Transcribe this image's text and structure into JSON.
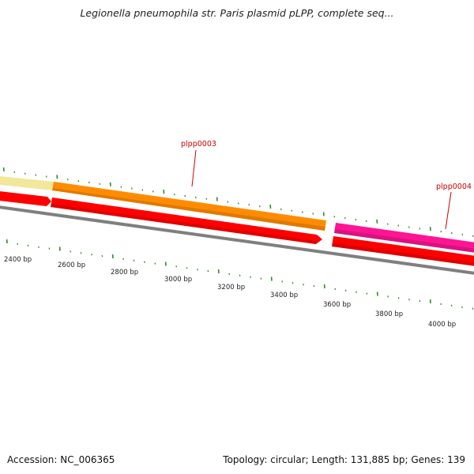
{
  "title": "Legionella pneumophila str. Paris plasmid pLPP, complete seq...",
  "footer": {
    "accession": "Accession: NC_006365",
    "summary": "Topology: circular; Length: 131,885 bp; Genes: 139"
  },
  "colors": {
    "backbone": "#7f7f7f",
    "tick": "#2e8b2e",
    "gene_label": "#cc0000",
    "cds": "#ff0000",
    "pale_gene": "#f2e79a",
    "orange_gene": "#ff8c00",
    "magenta_gene": "#ff1493"
  },
  "ruler": {
    "unit": "bp",
    "labels": [
      {
        "bp": 2400,
        "text": "2400 bp"
      },
      {
        "bp": 2600,
        "text": "2600 bp"
      },
      {
        "bp": 2800,
        "text": "2800 bp"
      },
      {
        "bp": 3000,
        "text": "3000 bp"
      },
      {
        "bp": 3200,
        "text": "3200 bp"
      },
      {
        "bp": 3400,
        "text": "3400 bp"
      },
      {
        "bp": 3600,
        "text": "3600 bp"
      },
      {
        "bp": 3800,
        "text": "3800 bp"
      },
      {
        "bp": 4000,
        "text": "4000 bp"
      }
    ]
  },
  "genes": [
    {
      "name": "",
      "color_key": "pale_gene",
      "label": ""
    },
    {
      "name": "plpp0003",
      "color_key": "orange_gene",
      "label": "plpp0003"
    },
    {
      "name": "plpp0004",
      "color_key": "magenta_gene",
      "label": "plpp0004"
    }
  ]
}
